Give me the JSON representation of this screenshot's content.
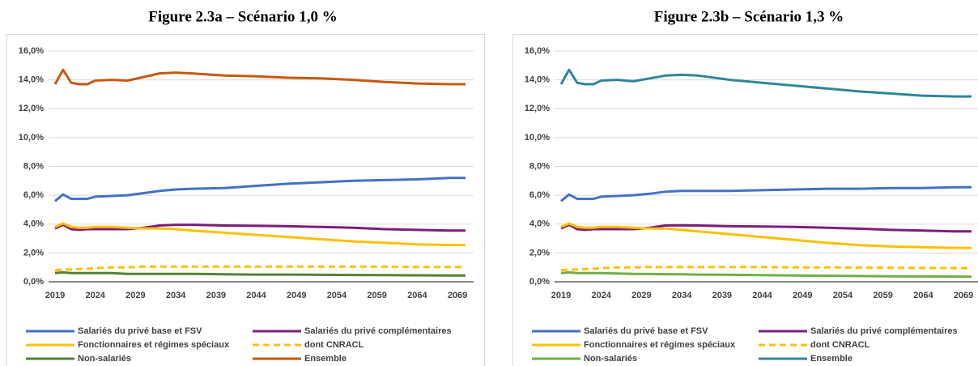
{
  "chart_data": [
    {
      "type": "line",
      "title": "Figure 2.3a – Scénario 1,0 %",
      "x": [
        2019,
        2020,
        2021,
        2022,
        2023,
        2024,
        2026,
        2028,
        2030,
        2032,
        2034,
        2036,
        2040,
        2044,
        2048,
        2052,
        2056,
        2060,
        2064,
        2068,
        2070
      ],
      "xlim": [
        2019,
        2070
      ],
      "xticks": [
        2019,
        2024,
        2029,
        2034,
        2039,
        2044,
        2049,
        2054,
        2059,
        2064,
        2069
      ],
      "ylim": [
        0,
        16
      ],
      "yticks": [
        {
          "value": 0,
          "label": "0,0%"
        },
        {
          "value": 2,
          "label": "2,0%"
        },
        {
          "value": 4,
          "label": "4,0%"
        },
        {
          "value": 6,
          "label": "6,0%"
        },
        {
          "value": 8,
          "label": "8,0%"
        },
        {
          "value": 10,
          "label": "10,0%"
        },
        {
          "value": 12,
          "label": "12,0%"
        },
        {
          "value": 14,
          "label": "14,0%"
        },
        {
          "value": 16,
          "label": "16,0%"
        }
      ],
      "grid": true,
      "series": [
        {
          "name": "Salariés du privé base et FSV",
          "color": "#4472c4",
          "values": [
            5.6,
            6.05,
            5.75,
            5.75,
            5.75,
            5.9,
            5.95,
            6.0,
            6.15,
            6.3,
            6.4,
            6.45,
            6.5,
            6.65,
            6.8,
            6.9,
            7.0,
            7.05,
            7.1,
            7.2,
            7.2
          ]
        },
        {
          "name": "Salariés du privé complémentaires",
          "color": "#7b1f7b",
          "values": [
            3.7,
            3.95,
            3.65,
            3.6,
            3.65,
            3.65,
            3.65,
            3.65,
            3.75,
            3.9,
            3.95,
            3.95,
            3.9,
            3.88,
            3.85,
            3.8,
            3.75,
            3.65,
            3.6,
            3.55,
            3.55
          ]
        },
        {
          "name": "Fonctionnaires et régimes spéciaux",
          "color": "#ffc000",
          "values": [
            3.8,
            4.05,
            3.8,
            3.75,
            3.75,
            3.8,
            3.8,
            3.75,
            3.7,
            3.7,
            3.65,
            3.55,
            3.4,
            3.25,
            3.1,
            2.95,
            2.8,
            2.7,
            2.6,
            2.55,
            2.55
          ]
        },
        {
          "name": "dont CNRACL",
          "color": "#ffc000",
          "dashed": true,
          "values": [
            0.8,
            0.85,
            0.85,
            0.88,
            0.9,
            0.95,
            1.0,
            1.0,
            1.05,
            1.05,
            1.05,
            1.05,
            1.05,
            1.05,
            1.05,
            1.05,
            1.05,
            1.05,
            1.03,
            1.02,
            1.02
          ]
        },
        {
          "name": "Non-salariés",
          "color": "#548235",
          "values": [
            0.6,
            0.65,
            0.6,
            0.6,
            0.6,
            0.6,
            0.6,
            0.55,
            0.55,
            0.55,
            0.55,
            0.55,
            0.52,
            0.5,
            0.5,
            0.48,
            0.47,
            0.46,
            0.45,
            0.44,
            0.44
          ]
        },
        {
          "name": "Ensemble",
          "color": "#c55a11",
          "values": [
            13.7,
            14.7,
            13.8,
            13.7,
            13.7,
            13.95,
            14.0,
            13.95,
            14.2,
            14.45,
            14.5,
            14.45,
            14.3,
            14.25,
            14.15,
            14.1,
            14.0,
            13.85,
            13.75,
            13.7,
            13.7
          ]
        }
      ]
    },
    {
      "type": "line",
      "title": "Figure 2.3b – Scénario 1,3 %",
      "x": [
        2019,
        2020,
        2021,
        2022,
        2023,
        2024,
        2026,
        2028,
        2030,
        2032,
        2034,
        2036,
        2040,
        2044,
        2048,
        2052,
        2056,
        2060,
        2064,
        2068,
        2070
      ],
      "xlim": [
        2019,
        2070
      ],
      "xticks": [
        2019,
        2024,
        2029,
        2034,
        2039,
        2044,
        2049,
        2054,
        2059,
        2064,
        2069
      ],
      "ylim": [
        0,
        16
      ],
      "yticks": [
        {
          "value": 0,
          "label": "0,0%"
        },
        {
          "value": 2,
          "label": "2,0%"
        },
        {
          "value": 4,
          "label": "4,0%"
        },
        {
          "value": 6,
          "label": "6,0%"
        },
        {
          "value": 8,
          "label": "8,0%"
        },
        {
          "value": 10,
          "label": "10,0%"
        },
        {
          "value": 12,
          "label": "12,0%"
        },
        {
          "value": 14,
          "label": "14,0%"
        },
        {
          "value": 16,
          "label": "16,0%"
        }
      ],
      "grid": true,
      "series": [
        {
          "name": "Salariés du privé base et FSV",
          "color": "#4472c4",
          "values": [
            5.6,
            6.05,
            5.75,
            5.75,
            5.75,
            5.9,
            5.95,
            6.0,
            6.1,
            6.25,
            6.3,
            6.3,
            6.3,
            6.35,
            6.4,
            6.45,
            6.45,
            6.5,
            6.5,
            6.55,
            6.55
          ]
        },
        {
          "name": "Salariés du privé complémentaires",
          "color": "#7b1f7b",
          "values": [
            3.7,
            3.95,
            3.65,
            3.6,
            3.65,
            3.65,
            3.65,
            3.65,
            3.75,
            3.9,
            3.92,
            3.9,
            3.85,
            3.83,
            3.8,
            3.75,
            3.68,
            3.6,
            3.55,
            3.5,
            3.5
          ]
        },
        {
          "name": "Fonctionnaires et régimes spéciaux",
          "color": "#ffc000",
          "values": [
            3.8,
            4.05,
            3.8,
            3.75,
            3.75,
            3.8,
            3.8,
            3.75,
            3.7,
            3.68,
            3.6,
            3.5,
            3.3,
            3.1,
            2.9,
            2.7,
            2.55,
            2.45,
            2.4,
            2.35,
            2.35
          ]
        },
        {
          "name": "dont CNRACL",
          "color": "#ffc000",
          "dashed": true,
          "values": [
            0.8,
            0.85,
            0.85,
            0.88,
            0.9,
            0.95,
            1.0,
            1.0,
            1.02,
            1.02,
            1.02,
            1.02,
            1.02,
            1.02,
            1.0,
            1.0,
            0.98,
            0.97,
            0.96,
            0.95,
            0.95
          ]
        },
        {
          "name": "Non-salariés",
          "color": "#70ad47",
          "values": [
            0.6,
            0.65,
            0.6,
            0.6,
            0.6,
            0.6,
            0.58,
            0.55,
            0.54,
            0.53,
            0.52,
            0.5,
            0.48,
            0.46,
            0.44,
            0.42,
            0.4,
            0.38,
            0.37,
            0.36,
            0.35
          ]
        },
        {
          "name": "Ensemble",
          "color": "#31859c",
          "values": [
            13.7,
            14.7,
            13.8,
            13.7,
            13.7,
            13.95,
            14.0,
            13.9,
            14.1,
            14.3,
            14.35,
            14.3,
            14.0,
            13.8,
            13.6,
            13.4,
            13.2,
            13.05,
            12.9,
            12.85,
            12.85
          ]
        }
      ]
    }
  ]
}
